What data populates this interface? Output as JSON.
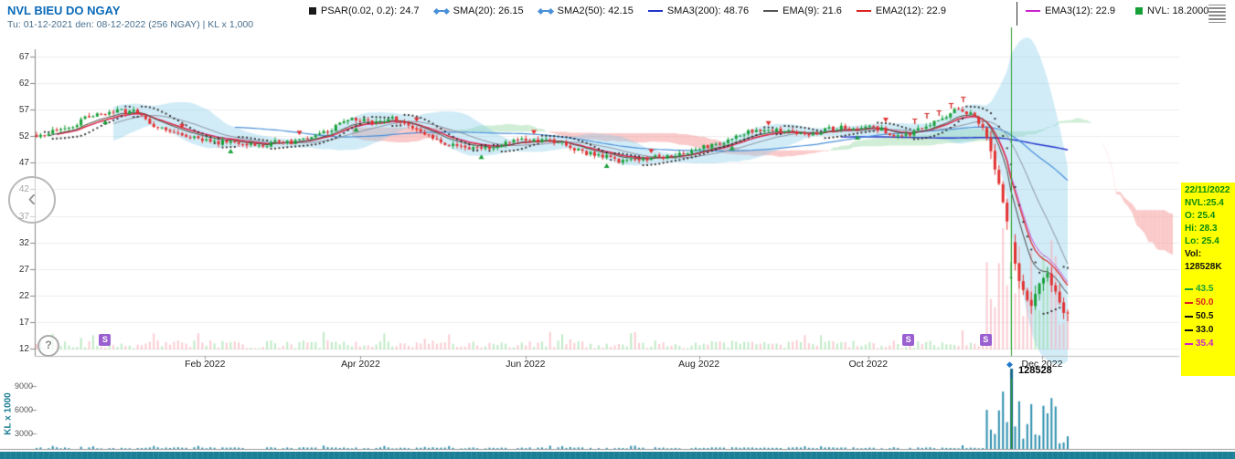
{
  "header": {
    "title": "NVL BIEU DO NGAY",
    "subtitle": "Tu: 01-12-2021 den: 08-12-2022 (256 NGAY) | KL x 1,000",
    "legend": [
      {
        "label": "PSAR(0.02, 0.2): 24.7",
        "icon": "square",
        "color": "#1a1a1a"
      },
      {
        "label": "SMA(20): 26.15",
        "icon": "diamond-line",
        "color": "#4a90d9"
      },
      {
        "label": "SMA2(50): 42.15",
        "icon": "diamond-line",
        "color": "#4a90d9"
      },
      {
        "label": "SMA3(200): 48.76",
        "icon": "line",
        "color": "#2233cc"
      },
      {
        "label": "EMA(9): 21.6",
        "icon": "line",
        "color": "#555555"
      },
      {
        "label": "EMA2(12): 22.9",
        "icon": "line",
        "color": "#dd2222"
      }
    ],
    "legend_right": [
      {
        "label": "EMA3(12): 22.9",
        "icon": "line",
        "color": "#cc22cc"
      },
      {
        "label": "NVL: 18.2000",
        "icon": "square",
        "color": "#18a038"
      }
    ]
  },
  "controls": {
    "back_glyph": "‹",
    "help_glyph": "?",
    "spike_marker_glyph": "◆"
  },
  "info_box": {
    "bg": "#ffff00",
    "text_color": "#0a8a0a",
    "date": "22/11/2022",
    "price_rows": [
      "NVL:25.4",
      "O: 25.4",
      "Hi: 28.3",
      "Lo: 25.4"
    ],
    "vol_label": "Vol:",
    "vol_value": "128528K",
    "levels": [
      {
        "value": "43.5",
        "color": "#18a038"
      },
      {
        "value": "50.0",
        "color": "#dd2222"
      },
      {
        "value": "50.5",
        "color": "#111111"
      },
      {
        "value": "33.0",
        "color": "#111111"
      },
      {
        "value": "35.4",
        "color": "#cc22cc"
      }
    ]
  },
  "volume_panel": {
    "axis_label": "KL x 1000",
    "ticks": [
      "9000",
      "6000",
      "3000"
    ],
    "spike_label": "128528",
    "bar_color": "#2d8fae",
    "spike_color": "#14688a"
  },
  "markers": {
    "s_color": "#9a5fd0",
    "s_glyph": "S",
    "s_positions": [
      0.066,
      0.845,
      0.92
    ],
    "t_cluster": {
      "from": 0.852,
      "to": 0.9
    }
  },
  "chart_data": {
    "type": "candlestick",
    "title": "NVL BIEU DO NGAY",
    "symbol": "NVL",
    "period_from": "01-12-2021",
    "period_to": "08-12-2022",
    "days": 256,
    "last_price": 18.2,
    "ylim": [
      12,
      67
    ],
    "y_ticks": [
      67,
      62,
      57,
      52,
      47,
      42,
      37,
      32,
      27,
      22,
      17,
      12
    ],
    "x_labels": [
      {
        "label": "Feb 2022",
        "x": 0.166
      },
      {
        "label": "Apr 2022",
        "x": 0.292
      },
      {
        "label": "Jun 2022",
        "x": 0.4255
      },
      {
        "label": "Aug 2022",
        "x": 0.566
      },
      {
        "label": "Oct 2022",
        "x": 0.703
      },
      {
        "label": "Dec 2022",
        "x": 0.8438
      }
    ],
    "indicators": {
      "psar_0.02_0.2": 24.7,
      "sma_20": 26.15,
      "sma2_50": 42.15,
      "sma3_200": 48.76,
      "ema_9": 21.6,
      "ema2_12": 22.9,
      "ema3_12": 22.9
    },
    "selected_day": {
      "date": "22/11/2022",
      "open": 25.4,
      "high": 28.3,
      "low": 25.4,
      "close": 25.4,
      "volume_k": 128528,
      "frac": 0.945
    },
    "close_path": [
      [
        0.0,
        51.5
      ],
      [
        0.02,
        53.0
      ],
      [
        0.05,
        55.5
      ],
      [
        0.075,
        57.0
      ],
      [
        0.095,
        56.5
      ],
      [
        0.115,
        54.0
      ],
      [
        0.135,
        52.5
      ],
      [
        0.16,
        51.5
      ],
      [
        0.19,
        50.5
      ],
      [
        0.22,
        50.5
      ],
      [
        0.25,
        51.0
      ],
      [
        0.28,
        52.5
      ],
      [
        0.305,
        55.5
      ],
      [
        0.325,
        54.5
      ],
      [
        0.345,
        55.5
      ],
      [
        0.365,
        53.0
      ],
      [
        0.39,
        51.0
      ],
      [
        0.42,
        49.5
      ],
      [
        0.45,
        50.5
      ],
      [
        0.48,
        51.5
      ],
      [
        0.51,
        50.5
      ],
      [
        0.54,
        48.5
      ],
      [
        0.565,
        47.5
      ],
      [
        0.59,
        47.5
      ],
      [
        0.62,
        48.5
      ],
      [
        0.65,
        50.0
      ],
      [
        0.68,
        52.0
      ],
      [
        0.7,
        53.5
      ],
      [
        0.72,
        53.0
      ],
      [
        0.75,
        52.5
      ],
      [
        0.78,
        53.5
      ],
      [
        0.8,
        54.0
      ],
      [
        0.82,
        53.0
      ],
      [
        0.84,
        52.0
      ],
      [
        0.86,
        53.5
      ],
      [
        0.875,
        55.0
      ],
      [
        0.89,
        57.0
      ],
      [
        0.9,
        56.5
      ],
      [
        0.91,
        55.5
      ],
      [
        0.92,
        52.5
      ],
      [
        0.93,
        46.0
      ],
      [
        0.94,
        38.0
      ],
      [
        0.947,
        29.0
      ],
      [
        0.952,
        25.4
      ],
      [
        0.958,
        22.0
      ],
      [
        0.964,
        20.0
      ],
      [
        0.972,
        23.5
      ],
      [
        0.98,
        26.5
      ],
      [
        0.985,
        24.0
      ],
      [
        0.99,
        21.0
      ],
      [
        0.995,
        19.0
      ],
      [
        1.0,
        18.2
      ]
    ],
    "volume": {
      "normal_k": [
        300,
        2500
      ],
      "crash_k": [
        15000,
        85000
      ],
      "crash_from": 0.918,
      "spike_k": 128528
    },
    "bands": {
      "bollinger_color": "#87ceeb",
      "cloud_up_color": "#96d7a5",
      "cloud_down_color": "#f69696"
    },
    "crosshair_color": "#2f9e2f"
  }
}
